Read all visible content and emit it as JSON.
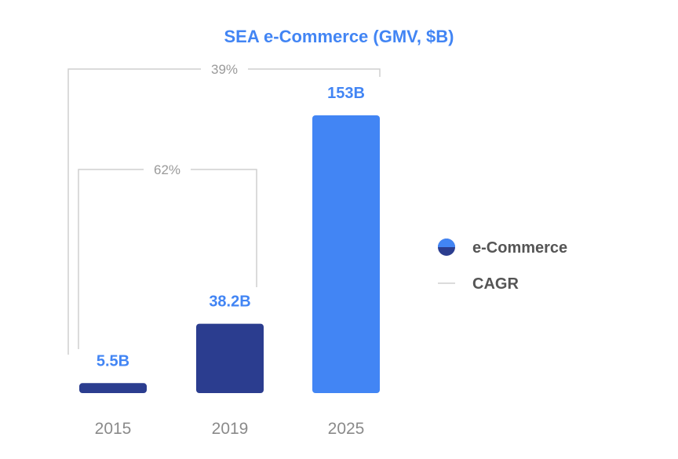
{
  "chart_data": {
    "type": "bar",
    "title": "SEA e-Commerce (GMV, $B)",
    "categories": [
      "2015",
      "2019",
      "2025"
    ],
    "series": [
      {
        "name": "e-Commerce",
        "values": [
          5.5,
          38.2,
          153
        ],
        "value_labels": [
          "5.5B",
          "38.2B",
          "153B"
        ]
      }
    ],
    "ylim": [
      0,
      153
    ],
    "grid": false,
    "legend": {
      "placement": "right",
      "entries": [
        {
          "label": "e-Commerce",
          "marker": "dot"
        },
        {
          "label": "CAGR",
          "marker": "line"
        }
      ]
    },
    "annotations": [
      {
        "type": "cagr-bracket",
        "from": "2015",
        "to": "2019",
        "label": "62%"
      },
      {
        "type": "cagr-bracket",
        "from": "2015",
        "to": "2025",
        "label": "39%"
      }
    ],
    "colors": {
      "title": "#4285f4",
      "label": "#4285f4",
      "bar_dark": "#2b3d8f",
      "bar_light": "#4285f4",
      "bracket": "#cfcfcf"
    }
  }
}
